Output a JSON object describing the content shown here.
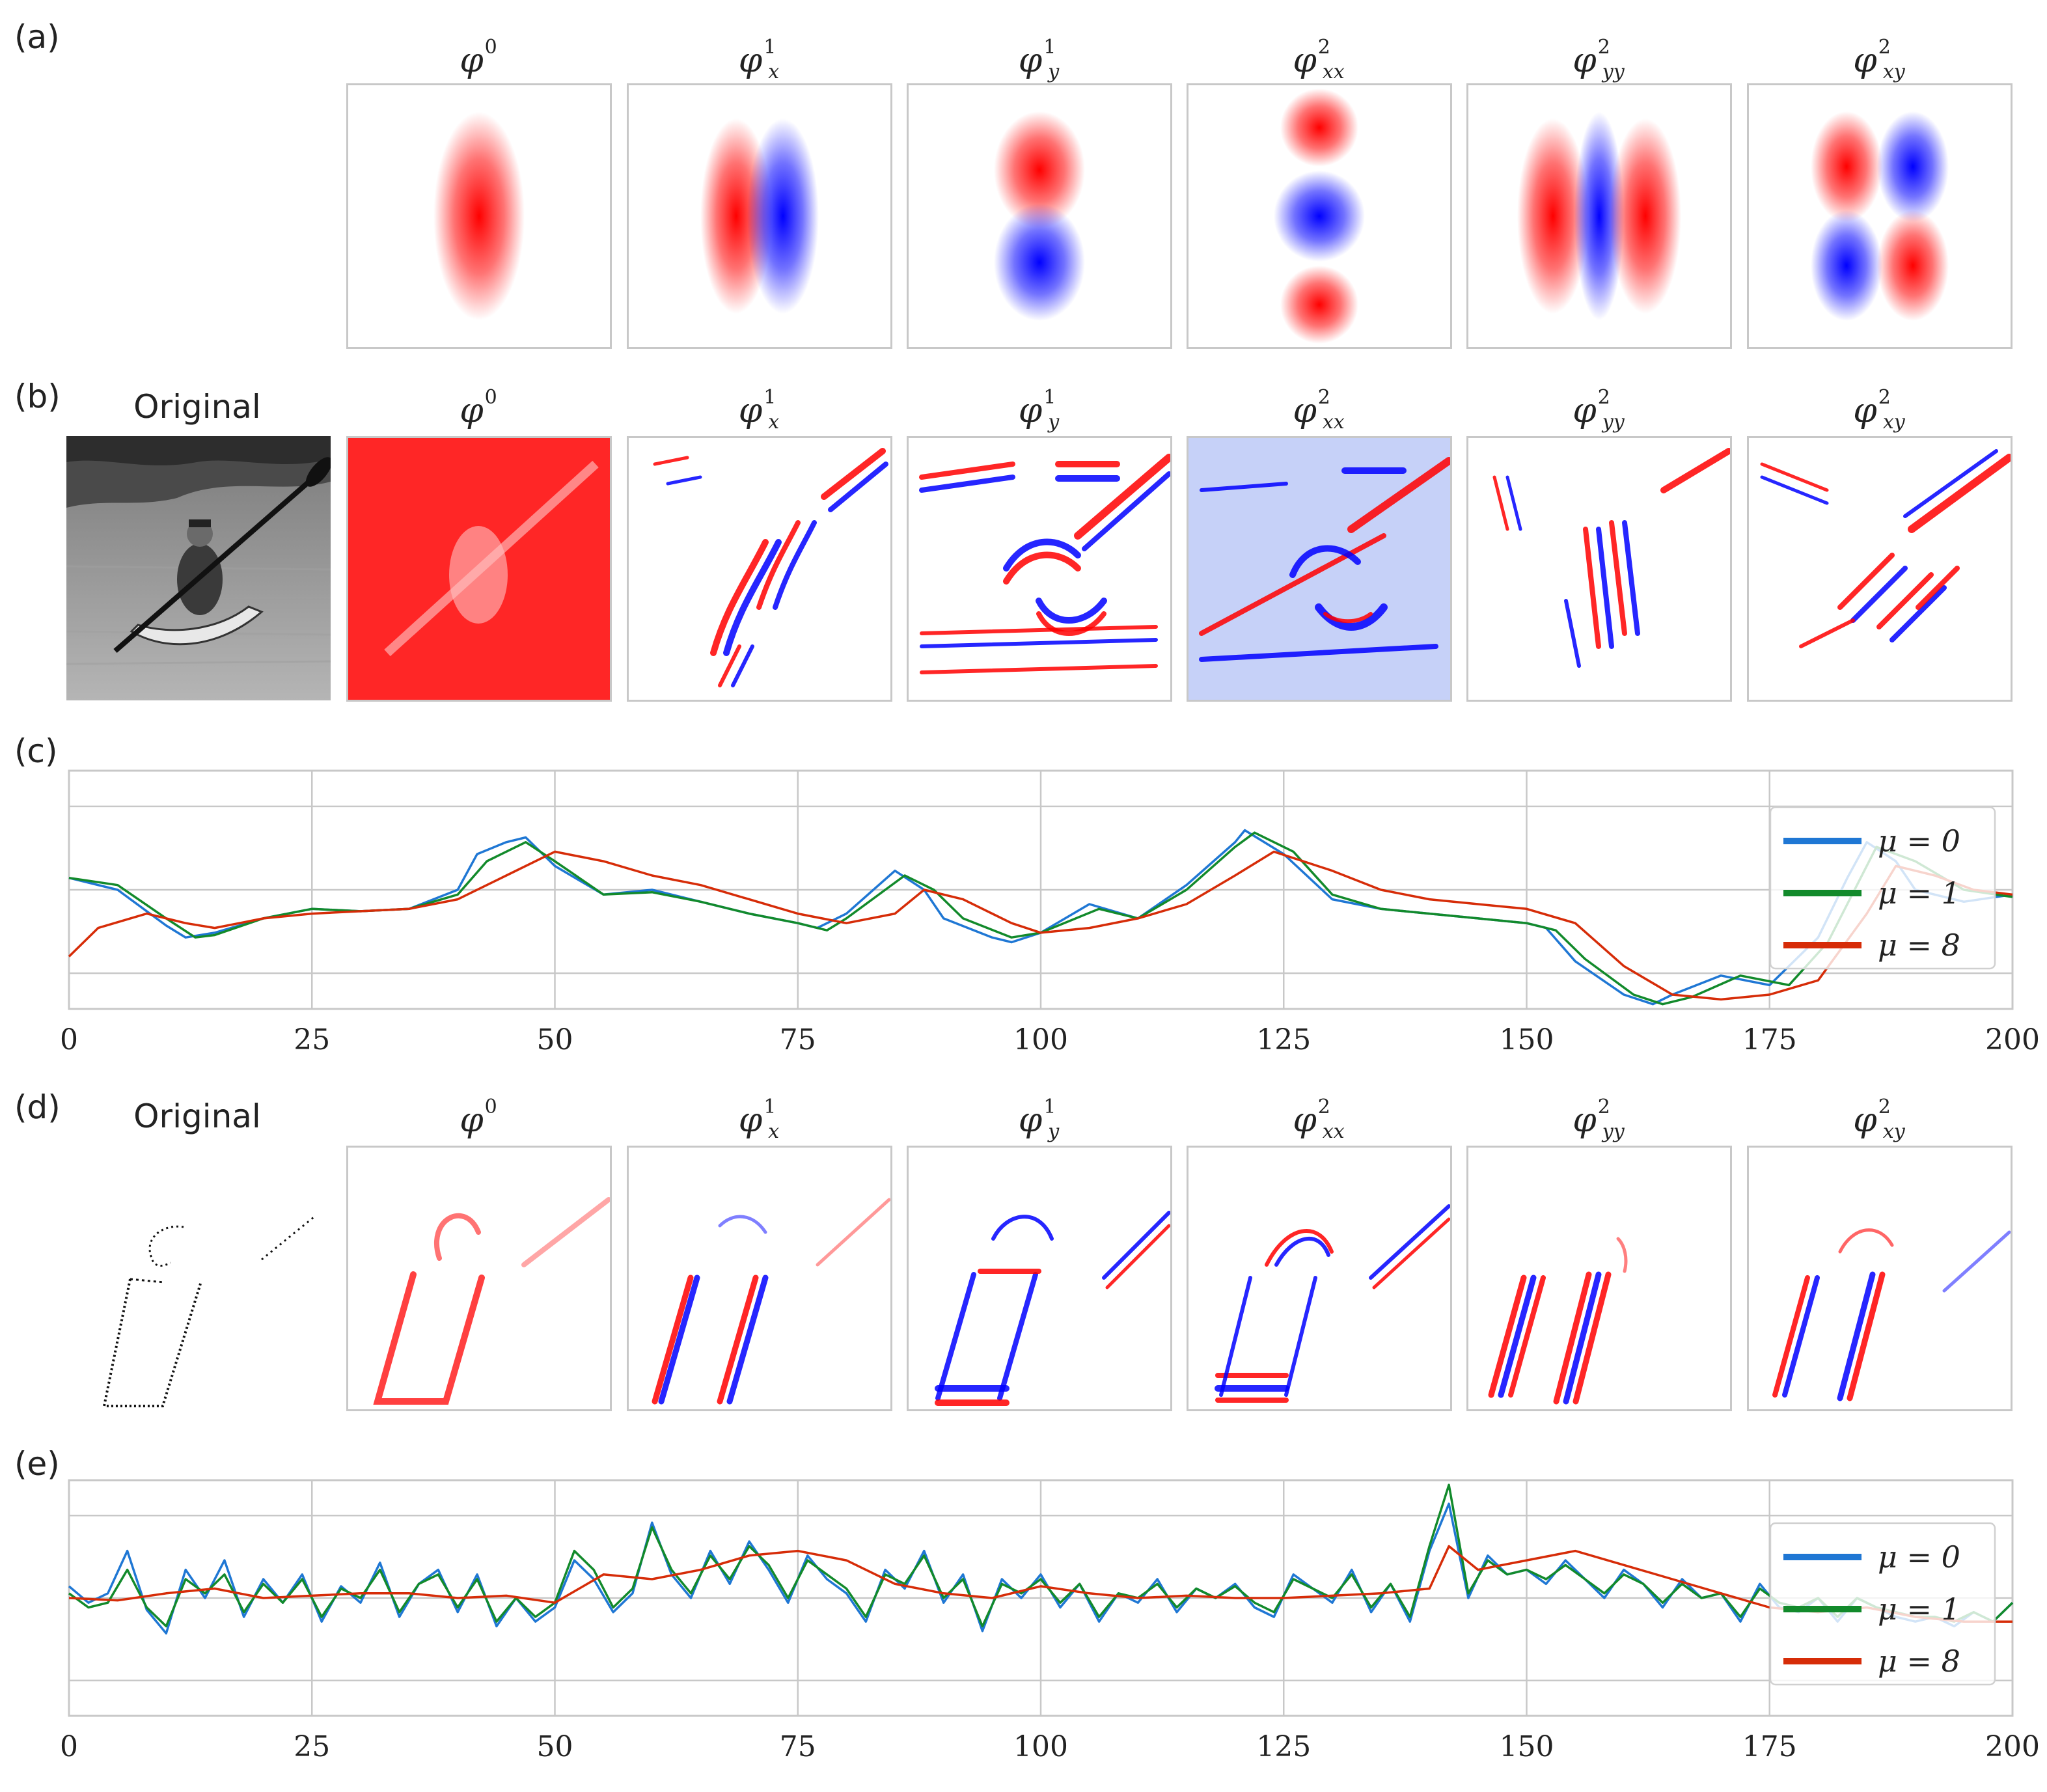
{
  "panel_labels": {
    "a": "(a)",
    "b": "(b)",
    "c": "(c)",
    "d": "(d)",
    "e": "(e)"
  },
  "original_label": "Original",
  "columns": [
    {
      "key": "phi0",
      "base": "φ",
      "sup": "0",
      "sub": ""
    },
    {
      "key": "phix",
      "base": "φ",
      "sup": "1",
      "sub": "x"
    },
    {
      "key": "phiy",
      "base": "φ",
      "sup": "1",
      "sub": "y"
    },
    {
      "key": "phixx",
      "base": "φ",
      "sup": "2",
      "sub": "xx"
    },
    {
      "key": "phiyy",
      "base": "φ",
      "sup": "2",
      "sub": "yy"
    },
    {
      "key": "phixy",
      "base": "φ",
      "sup": "2",
      "sub": "xy"
    }
  ],
  "colors": {
    "positive": "#ff0000",
    "negative": "#0000ff",
    "frame": "#c8c8c8"
  },
  "chart_data": [
    {
      "type": "line",
      "panel": "(c)",
      "xlim": [
        0,
        200
      ],
      "xticks": [
        "0",
        "25",
        "50",
        "75",
        "100",
        "125",
        "150",
        "175",
        "200"
      ],
      "grid": true,
      "legend_position": "right",
      "series": [
        {
          "name": "μ = 0",
          "color": "#1f77d4",
          "x": [
            0,
            5,
            10,
            12,
            15,
            20,
            25,
            30,
            35,
            40,
            42,
            45,
            47,
            50,
            55,
            60,
            65,
            70,
            75,
            77,
            80,
            85,
            88,
            90,
            95,
            97,
            100,
            105,
            110,
            115,
            120,
            121,
            125,
            130,
            135,
            140,
            145,
            150,
            152,
            155,
            160,
            163,
            165,
            170,
            175,
            180,
            183,
            185,
            188,
            190,
            195,
            200
          ],
          "y": [
            0.55,
            0.5,
            0.35,
            0.3,
            0.32,
            0.38,
            0.42,
            0.41,
            0.42,
            0.5,
            0.65,
            0.7,
            0.72,
            0.6,
            0.48,
            0.5,
            0.45,
            0.4,
            0.36,
            0.34,
            0.4,
            0.58,
            0.5,
            0.38,
            0.3,
            0.28,
            0.32,
            0.44,
            0.38,
            0.52,
            0.7,
            0.75,
            0.65,
            0.46,
            0.42,
            0.4,
            0.38,
            0.36,
            0.34,
            0.2,
            0.06,
            0.02,
            0.06,
            0.14,
            0.1,
            0.3,
            0.55,
            0.7,
            0.62,
            0.5,
            0.45,
            0.48
          ]
        },
        {
          "name": "μ = 1",
          "color": "#128a2b",
          "x": [
            0,
            5,
            10,
            13,
            15,
            20,
            25,
            30,
            35,
            40,
            43,
            47,
            50,
            55,
            60,
            65,
            70,
            75,
            78,
            80,
            86,
            89,
            92,
            97,
            100,
            106,
            110,
            115,
            120,
            122,
            126,
            130,
            135,
            140,
            145,
            150,
            153,
            156,
            161,
            164,
            167,
            172,
            177,
            181,
            184,
            186,
            190,
            195,
            200
          ],
          "y": [
            0.55,
            0.52,
            0.38,
            0.3,
            0.31,
            0.38,
            0.42,
            0.41,
            0.42,
            0.48,
            0.62,
            0.7,
            0.62,
            0.48,
            0.49,
            0.45,
            0.4,
            0.36,
            0.33,
            0.38,
            0.56,
            0.5,
            0.38,
            0.3,
            0.32,
            0.42,
            0.38,
            0.5,
            0.68,
            0.74,
            0.66,
            0.48,
            0.42,
            0.4,
            0.38,
            0.36,
            0.33,
            0.21,
            0.06,
            0.02,
            0.05,
            0.14,
            0.1,
            0.28,
            0.52,
            0.68,
            0.62,
            0.5,
            0.47
          ]
        },
        {
          "name": "μ = 8",
          "color": "#d62c08",
          "x": [
            0,
            3,
            8,
            12,
            15,
            20,
            25,
            30,
            35,
            40,
            45,
            50,
            55,
            60,
            65,
            70,
            75,
            80,
            85,
            88,
            92,
            97,
            100,
            105,
            110,
            115,
            120,
            124,
            130,
            135,
            140,
            145,
            150,
            155,
            160,
            165,
            170,
            175,
            180,
            185,
            188,
            192,
            196,
            200
          ],
          "y": [
            0.22,
            0.34,
            0.4,
            0.36,
            0.34,
            0.38,
            0.4,
            0.41,
            0.42,
            0.46,
            0.56,
            0.66,
            0.62,
            0.56,
            0.52,
            0.46,
            0.4,
            0.36,
            0.4,
            0.5,
            0.46,
            0.36,
            0.32,
            0.34,
            0.38,
            0.44,
            0.56,
            0.66,
            0.58,
            0.5,
            0.46,
            0.44,
            0.42,
            0.36,
            0.18,
            0.06,
            0.04,
            0.06,
            0.12,
            0.4,
            0.6,
            0.56,
            0.5,
            0.48
          ]
        }
      ],
      "legend": [
        "μ = 0",
        "μ = 1",
        "μ = 8"
      ]
    },
    {
      "type": "line",
      "panel": "(e)",
      "xlim": [
        0,
        200
      ],
      "xticks": [
        "0",
        "25",
        "50",
        "75",
        "100",
        "125",
        "150",
        "175",
        "200"
      ],
      "grid": true,
      "legend_position": "right",
      "series": [
        {
          "name": "μ = 0",
          "color": "#1f77d4",
          "x": [
            0,
            2,
            4,
            6,
            8,
            10,
            12,
            14,
            16,
            18,
            20,
            22,
            24,
            26,
            28,
            30,
            32,
            34,
            36,
            38,
            40,
            42,
            44,
            46,
            48,
            50,
            52,
            54,
            56,
            58,
            60,
            62,
            64,
            66,
            68,
            70,
            72,
            74,
            76,
            78,
            80,
            82,
            84,
            86,
            88,
            90,
            92,
            94,
            96,
            98,
            100,
            102,
            104,
            106,
            108,
            110,
            112,
            114,
            116,
            118,
            120,
            122,
            124,
            126,
            128,
            130,
            132,
            134,
            136,
            138,
            140,
            142,
            144,
            146,
            148,
            150,
            152,
            154,
            156,
            158,
            160,
            162,
            164,
            166,
            168,
            170,
            172,
            174,
            176,
            178,
            180,
            182,
            184,
            186,
            188,
            190,
            192,
            194,
            196,
            198,
            200
          ],
          "y": [
            0.55,
            0.48,
            0.52,
            0.7,
            0.45,
            0.35,
            0.62,
            0.5,
            0.66,
            0.42,
            0.58,
            0.48,
            0.6,
            0.4,
            0.55,
            0.48,
            0.65,
            0.42,
            0.56,
            0.62,
            0.44,
            0.6,
            0.38,
            0.5,
            0.4,
            0.46,
            0.66,
            0.58,
            0.44,
            0.52,
            0.82,
            0.6,
            0.5,
            0.7,
            0.56,
            0.74,
            0.62,
            0.48,
            0.68,
            0.58,
            0.52,
            0.4,
            0.62,
            0.54,
            0.7,
            0.48,
            0.6,
            0.36,
            0.58,
            0.5,
            0.6,
            0.46,
            0.56,
            0.4,
            0.52,
            0.48,
            0.58,
            0.44,
            0.54,
            0.5,
            0.56,
            0.46,
            0.42,
            0.6,
            0.54,
            0.48,
            0.62,
            0.44,
            0.56,
            0.4,
            0.7,
            0.9,
            0.5,
            0.68,
            0.6,
            0.62,
            0.56,
            0.66,
            0.58,
            0.5,
            0.62,
            0.56,
            0.46,
            0.58,
            0.5,
            0.52,
            0.4,
            0.56,
            0.46,
            0.44,
            0.5,
            0.4,
            0.5,
            0.46,
            0.42,
            0.4,
            0.42,
            0.38,
            0.44,
            0.4,
            0.48
          ]
        },
        {
          "name": "μ = 1",
          "color": "#128a2b",
          "x": [
            0,
            2,
            4,
            6,
            8,
            10,
            12,
            14,
            16,
            18,
            20,
            22,
            24,
            26,
            28,
            30,
            32,
            34,
            36,
            38,
            40,
            42,
            44,
            46,
            48,
            50,
            52,
            54,
            56,
            58,
            60,
            62,
            64,
            66,
            68,
            70,
            72,
            74,
            76,
            78,
            80,
            82,
            84,
            86,
            88,
            90,
            92,
            94,
            96,
            98,
            100,
            102,
            104,
            106,
            108,
            110,
            112,
            114,
            116,
            118,
            120,
            122,
            124,
            126,
            128,
            130,
            132,
            134,
            136,
            138,
            140,
            142,
            144,
            146,
            148,
            150,
            152,
            154,
            156,
            158,
            160,
            162,
            164,
            166,
            168,
            170,
            172,
            174,
            176,
            178,
            180,
            182,
            184,
            186,
            188,
            190,
            192,
            194,
            196,
            198,
            200
          ],
          "y": [
            0.52,
            0.46,
            0.48,
            0.62,
            0.46,
            0.38,
            0.58,
            0.52,
            0.6,
            0.44,
            0.56,
            0.48,
            0.58,
            0.42,
            0.54,
            0.5,
            0.62,
            0.44,
            0.56,
            0.6,
            0.46,
            0.58,
            0.4,
            0.5,
            0.42,
            0.48,
            0.7,
            0.62,
            0.46,
            0.54,
            0.8,
            0.62,
            0.52,
            0.68,
            0.58,
            0.72,
            0.64,
            0.5,
            0.66,
            0.6,
            0.54,
            0.42,
            0.6,
            0.56,
            0.68,
            0.5,
            0.58,
            0.38,
            0.56,
            0.52,
            0.58,
            0.48,
            0.56,
            0.42,
            0.52,
            0.5,
            0.56,
            0.46,
            0.54,
            0.5,
            0.55,
            0.48,
            0.44,
            0.58,
            0.54,
            0.5,
            0.6,
            0.46,
            0.56,
            0.42,
            0.72,
            0.98,
            0.52,
            0.66,
            0.6,
            0.62,
            0.58,
            0.64,
            0.58,
            0.52,
            0.6,
            0.56,
            0.48,
            0.56,
            0.5,
            0.52,
            0.42,
            0.54,
            0.48,
            0.46,
            0.5,
            0.42,
            0.5,
            0.46,
            0.44,
            0.42,
            0.42,
            0.4,
            0.44,
            0.4,
            0.48
          ]
        },
        {
          "name": "μ = 8",
          "color": "#d62c08",
          "x": [
            0,
            5,
            10,
            15,
            20,
            25,
            30,
            35,
            40,
            45,
            50,
            55,
            60,
            65,
            70,
            75,
            80,
            85,
            90,
            95,
            100,
            105,
            110,
            115,
            120,
            125,
            130,
            135,
            140,
            142,
            145,
            150,
            155,
            160,
            165,
            170,
            175,
            180,
            185,
            190,
            195,
            200
          ],
          "y": [
            0.5,
            0.49,
            0.52,
            0.54,
            0.5,
            0.51,
            0.52,
            0.52,
            0.5,
            0.51,
            0.48,
            0.6,
            0.58,
            0.62,
            0.68,
            0.7,
            0.66,
            0.56,
            0.52,
            0.5,
            0.55,
            0.52,
            0.5,
            0.51,
            0.5,
            0.5,
            0.51,
            0.52,
            0.54,
            0.72,
            0.62,
            0.66,
            0.7,
            0.64,
            0.58,
            0.52,
            0.46,
            0.44,
            0.46,
            0.42,
            0.4,
            0.4
          ]
        }
      ],
      "legend": [
        "μ = 0",
        "μ = 1",
        "μ = 8"
      ]
    }
  ]
}
